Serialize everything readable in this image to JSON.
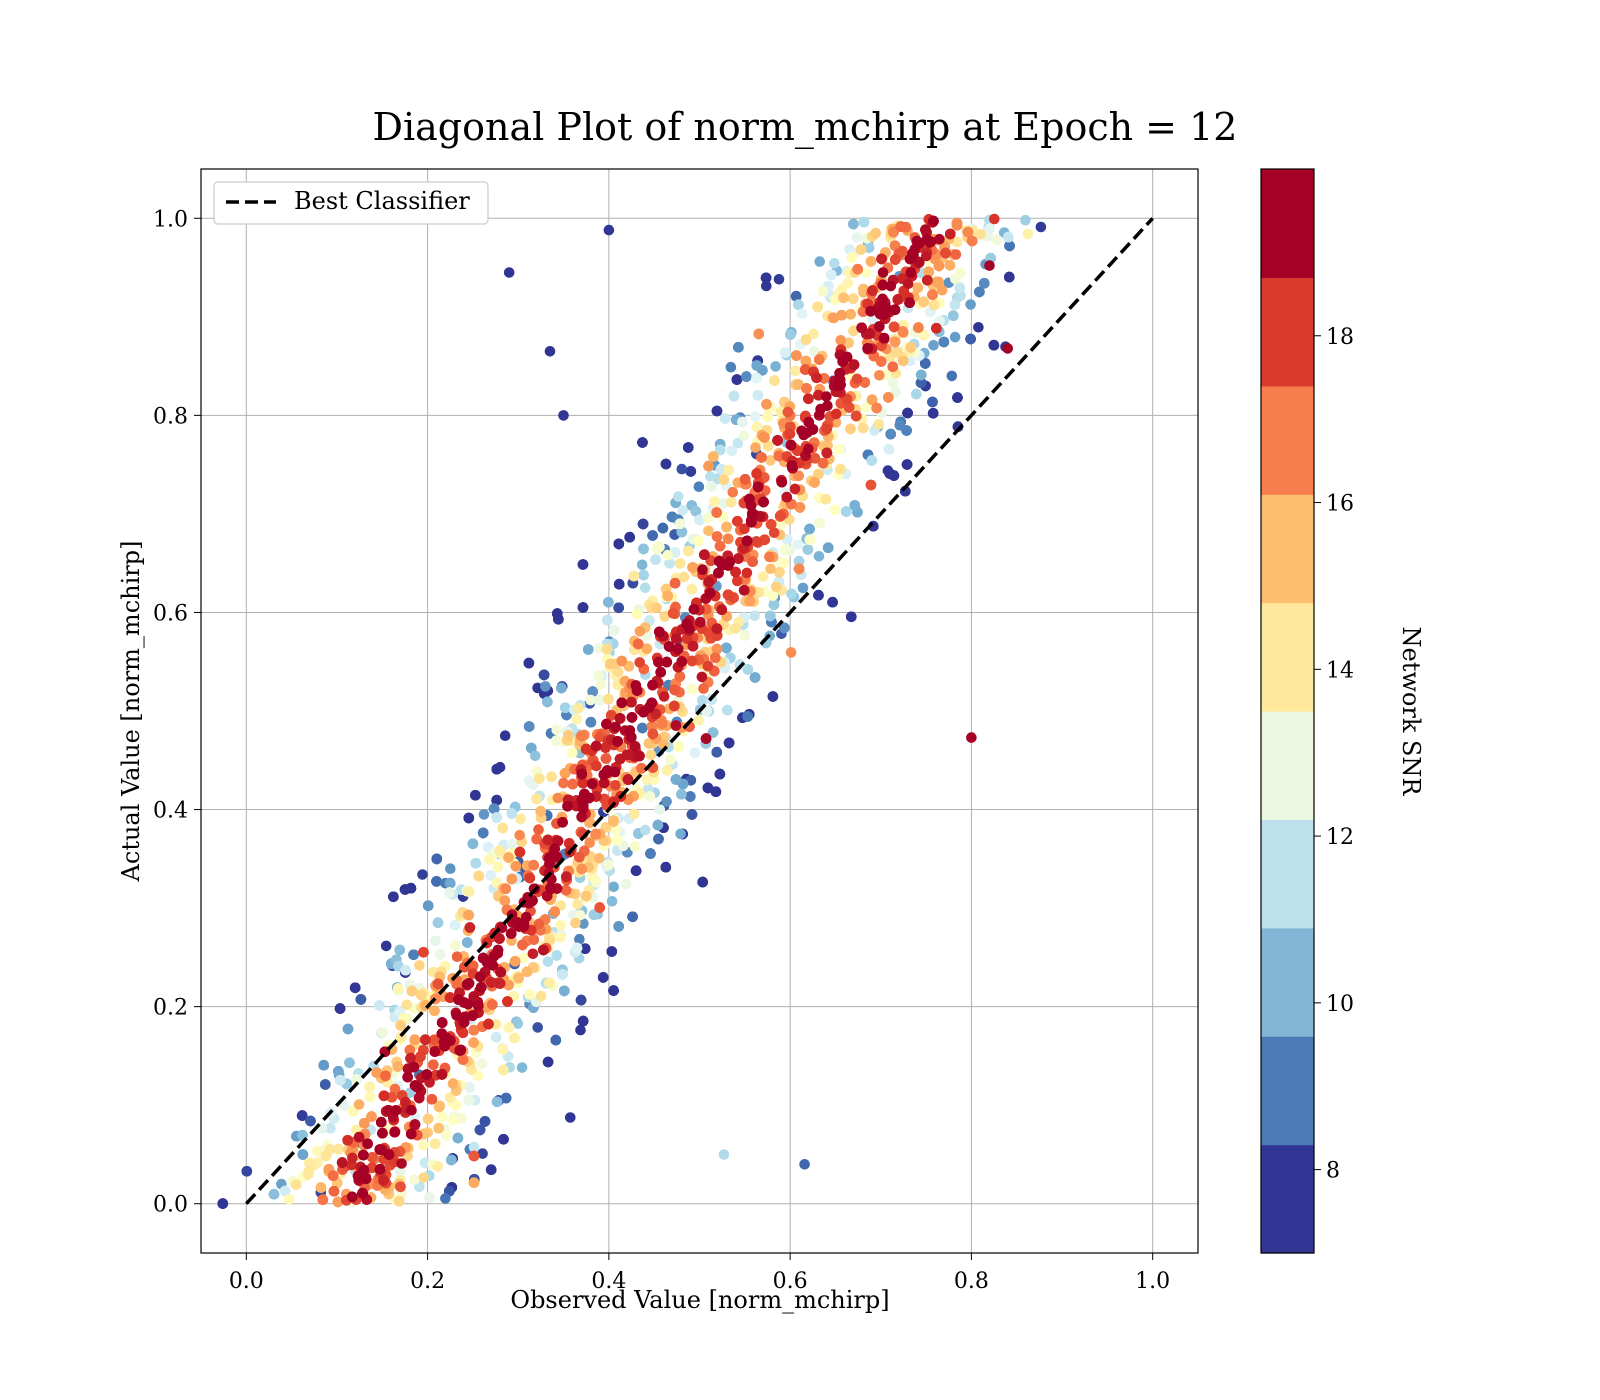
{
  "chart_data": {
    "type": "scatter",
    "title": "Diagonal Plot of norm_mchirp at Epoch = 12",
    "xlabel": "Observed Value [norm_mchirp]",
    "ylabel": "Actual Value [norm_mchirp]",
    "xlim": [
      -0.05,
      1.05
    ],
    "ylim": [
      -0.05,
      1.05
    ],
    "xticks": [
      "0.0",
      "0.2",
      "0.4",
      "0.6",
      "0.8",
      "1.0"
    ],
    "yticks": [
      "0.0",
      "0.2",
      "0.4",
      "0.6",
      "0.8",
      "1.0"
    ],
    "grid": true,
    "legend": {
      "position": "top-left",
      "entries": [
        {
          "label": "Best Classifier",
          "style": "dashed",
          "color": "#000000"
        }
      ]
    },
    "reference_line": {
      "x": [
        0.0,
        1.0
      ],
      "y": [
        0.0,
        1.0
      ]
    },
    "colorbar": {
      "label": "Network SNR",
      "range": [
        7,
        20
      ],
      "ticks": [
        "8",
        "10",
        "12",
        "14",
        "16",
        "18"
      ],
      "colors": [
        "#313695",
        "#4575b4",
        "#74add1",
        "#abd9e9",
        "#e0f3f8",
        "#ffffbf",
        "#fee090",
        "#fdae61",
        "#f46d43",
        "#d73027",
        "#a50026"
      ],
      "bands": [
        "#313695",
        "#4a7bb7",
        "#83b5d6",
        "#bee0ec",
        "#edf7e0",
        "#fee89c",
        "#fdbe6f",
        "#f57e4c",
        "#d83a2e",
        "#a50026"
      ]
    },
    "scatter_band": {
      "description": "dense point cloud along diagonal, high SNR (dark red) near y=x, lower SNR (blue) toward the edges",
      "x_range": [
        0.08,
        0.84
      ],
      "y_range": [
        0.0,
        1.0
      ],
      "core_snr": 20,
      "edge_snr": 7
    },
    "sample_points": [
      {
        "x": 0.29,
        "y": 0.945,
        "snr": 7
      },
      {
        "x": 0.4,
        "y": 0.988,
        "snr": 7
      },
      {
        "x": 0.84,
        "y": 0.868,
        "snr": 20
      },
      {
        "x": 0.82,
        "y": 0.952,
        "snr": 20
      },
      {
        "x": 0.8,
        "y": 0.473,
        "snr": 20
      },
      {
        "x": 0.616,
        "y": 0.04,
        "snr": 8
      },
      {
        "x": 0.33,
        "y": 0.525,
        "snr": 9
      },
      {
        "x": 0.28,
        "y": 0.443,
        "snr": 7
      },
      {
        "x": 0.225,
        "y": 0.34,
        "snr": 9
      },
      {
        "x": 0.527,
        "y": 0.05,
        "snr": 11
      },
      {
        "x": 0.335,
        "y": 0.865,
        "snr": 7
      },
      {
        "x": 0.35,
        "y": 0.8,
        "snr": 7
      }
    ]
  }
}
